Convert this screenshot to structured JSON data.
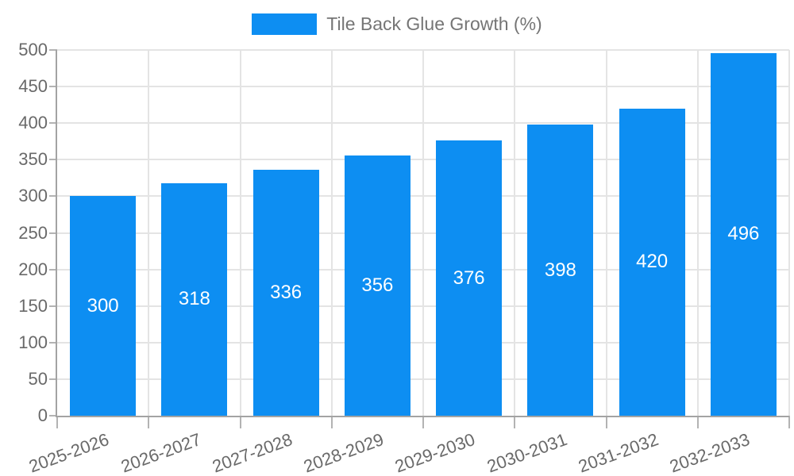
{
  "legend": {
    "label": "Tile Back Glue Growth (%)"
  },
  "chart_data": {
    "type": "bar",
    "title": "Tile Back Glue Growth (%)",
    "categories": [
      "2025-2026",
      "2026-2027",
      "2027-2028",
      "2028-2029",
      "2029-2030",
      "2030-2031",
      "2031-2032",
      "2032-2033"
    ],
    "values": [
      300,
      318,
      336,
      356,
      376,
      398,
      420,
      496
    ],
    "xlabel": "",
    "ylabel": "",
    "ylim": [
      0,
      500
    ],
    "y_ticks": [
      0,
      50,
      100,
      150,
      200,
      250,
      300,
      350,
      400,
      450,
      500
    ],
    "grid": true,
    "legend_position": "top",
    "colors": {
      "bar": "#0d8ef2",
      "bar_label": "#ffffff",
      "axis": "#a3a3a3",
      "tick": "#b3b3b3",
      "grid": "#e4e4e4",
      "tick_text": "#696969",
      "legend_text": "#757575",
      "background": "#ffffff"
    }
  }
}
